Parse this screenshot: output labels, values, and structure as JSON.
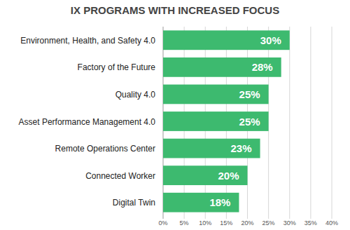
{
  "chart_data": {
    "type": "bar",
    "orientation": "horizontal",
    "title": "IX PROGRAMS WITH INCREASED FOCUS",
    "categories": [
      "Environment, Health, and Safety 4.0",
      "Factory of the Future",
      "Quality 4.0",
      "Asset Performance Management 4.0",
      "Remote Operations Center",
      "Connected Worker",
      "Digital Twin"
    ],
    "values": [
      30,
      28,
      25,
      25,
      23,
      20,
      18
    ],
    "value_labels": [
      "30%",
      "28%",
      "25%",
      "25%",
      "23%",
      "20%",
      "18%"
    ],
    "color": "#3dba6f",
    "xlim": [
      0,
      40
    ],
    "xticks": [
      {
        "value": 0,
        "label": "0%"
      },
      {
        "value": 5,
        "label": "5%"
      },
      {
        "value": 10,
        "label": "10%"
      },
      {
        "value": 15,
        "label": "15%"
      },
      {
        "value": 20,
        "label": "20%"
      },
      {
        "value": 25,
        "label": "25%"
      },
      {
        "value": 30,
        "label": "30%"
      },
      {
        "value": 35,
        "label": "35%"
      },
      {
        "value": 40,
        "label": "40%"
      }
    ],
    "grid": true,
    "data_labels": true
  }
}
